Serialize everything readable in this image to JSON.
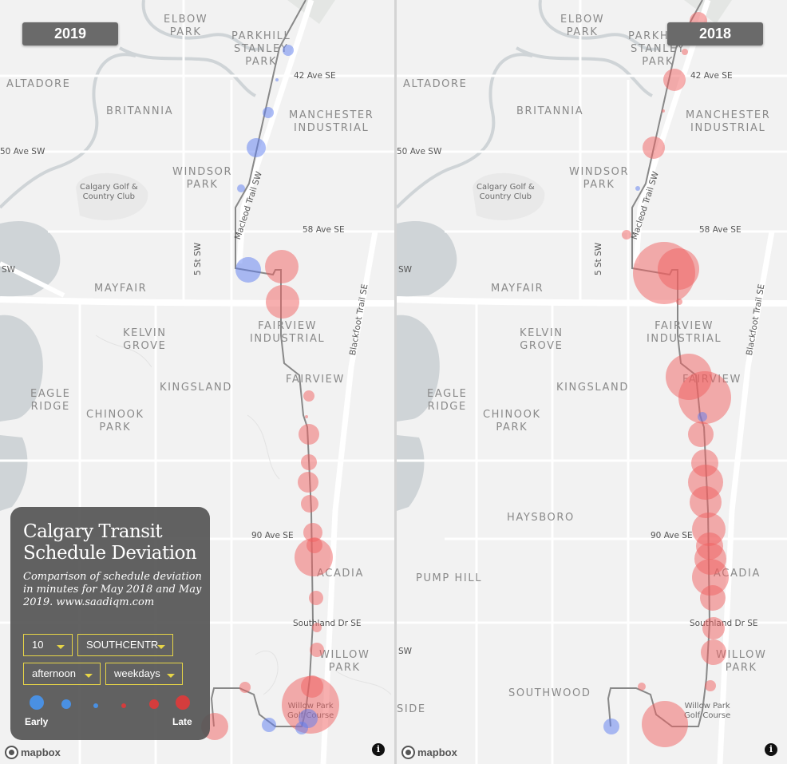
{
  "maps": [
    {
      "year": "2019",
      "attribution": "mapbox",
      "info_icon": "info-icon",
      "points_early_color": "#5b7cf0",
      "points_late_color": "#f06060",
      "deviation_points": [
        {
          "place": "Parkhill Stanley Park stop",
          "deviation_level": "early-small"
        },
        {
          "place": "42 Ave SE stop",
          "deviation_level": "early-tiny"
        },
        {
          "place": "Manchester stop",
          "deviation_level": "early-small"
        },
        {
          "place": "50 Ave SW stop",
          "deviation_level": "early-medium"
        },
        {
          "place": "Windsor Park stop",
          "deviation_level": "early-tiny"
        },
        {
          "place": "58 Ave SE west stop",
          "deviation_level": "early-medium"
        },
        {
          "place": "58 Ave SE east stop",
          "deviation_level": "late-large"
        },
        {
          "place": "Fairview Industrial stop",
          "deviation_level": "late-large"
        },
        {
          "place": "Fairview stop",
          "deviation_level": "late-small"
        },
        {
          "place": "Macleod stop 1",
          "deviation_level": "late-medium"
        },
        {
          "place": "Macleod stop 2",
          "deviation_level": "late-small"
        },
        {
          "place": "Macleod stop 3",
          "deviation_level": "late-medium"
        },
        {
          "place": "Macleod stop 4",
          "deviation_level": "late-small"
        },
        {
          "place": "90 Ave SE stop",
          "deviation_level": "late-medium"
        },
        {
          "place": "Acadia stop",
          "deviation_level": "late-large"
        },
        {
          "place": "Acadia south stop",
          "deviation_level": "late-small"
        },
        {
          "place": "Southland Dr SE stop",
          "deviation_level": "late-small"
        },
        {
          "place": "Willow Park stop",
          "deviation_level": "late-small"
        },
        {
          "place": "Willow Park north stop",
          "deviation_level": "late-medium"
        },
        {
          "place": "Willow Park Golf Course stop",
          "deviation_level": "late-xlarge"
        },
        {
          "place": "Southwood east stop",
          "deviation_level": "early-medium"
        },
        {
          "place": "Southwood stop",
          "deviation_level": "late-small"
        },
        {
          "place": "Southcentre stop",
          "deviation_level": "late-medium"
        }
      ]
    },
    {
      "year": "2018",
      "attribution": "mapbox",
      "info_icon": "info-icon",
      "deviation_points": [
        {
          "place": "Elbow Park stop",
          "deviation_level": "late-medium"
        },
        {
          "place": "42 Ave SE stop",
          "deviation_level": "late-medium"
        },
        {
          "place": "50 Ave SW stop",
          "deviation_level": "late-medium"
        },
        {
          "place": "58 Ave SE stop",
          "deviation_level": "late-xlarge"
        },
        {
          "place": "Fairview stop",
          "deviation_level": "late-xlarge"
        },
        {
          "place": "Macleod stops",
          "deviation_level": "late-large"
        },
        {
          "place": "Willow Park Golf Course stop",
          "deviation_level": "late-xlarge"
        },
        {
          "place": "Southwood stop",
          "deviation_level": "early-medium"
        }
      ]
    }
  ],
  "neighbourhoods": {
    "elbow_park": "ELBOW\nPARK",
    "parkhill": "PARKHILL\nSTANLEY\nPARK",
    "altadore": "ALTADORE",
    "britannia": "BRITANNIA",
    "manchester": "MANCHESTER\nINDUSTRIAL",
    "windsor_park": "WINDSOR\nPARK",
    "mayfair": "MAYFAIR",
    "kelvin_grove": "KELVIN\nGROVE",
    "fairview_industrial": "FAIRVIEW\nINDUSTRIAL",
    "kingsland": "KINGSLAND",
    "fairview": "FAIRVIEW",
    "eagle_ridge": "EAGLE\nRIDGE",
    "chinook_park": "CHINOOK\nPARK",
    "haysboro": "HAYSBORO",
    "acadia": "ACADIA",
    "pump_hill": "PUMP HILL",
    "willow_park": "WILLOW\nPARK",
    "southwood": "SOUTHWOOD",
    "side": "SIDE"
  },
  "streets": {
    "ave42": "42 Ave SE",
    "ave50": "50 Ave SW",
    "ave58": "58 Ave SE",
    "macleod": "Macleod Trail SW",
    "st5": "5 St SW",
    "blackfoot": "Blackfoot Trail SE",
    "ave90": "90 Ave SE",
    "southland": "Southland Dr SE",
    "sw": "SW"
  },
  "places": {
    "calgary_golf": "Calgary Golf &\nCountry Club",
    "willow_golf": "Willow Park\nGolf Course"
  },
  "panel": {
    "title": "Calgary Transit Schedule Deviation",
    "description": "Comparison of schedule deviation in minutes for May 2018 and May 2019. www.saadiqm.com",
    "route_value": "10",
    "stop_value": "SOUTHCENTR",
    "time_value": "afternoon",
    "day_value": "weekdays",
    "legend_early": "Early",
    "legend_late": "Late",
    "legend_colors": [
      "#4a90e2",
      "#4a90e2",
      "#4a90e2",
      "#d43d3d",
      "#d43d3d",
      "#d43d3d"
    ]
  }
}
